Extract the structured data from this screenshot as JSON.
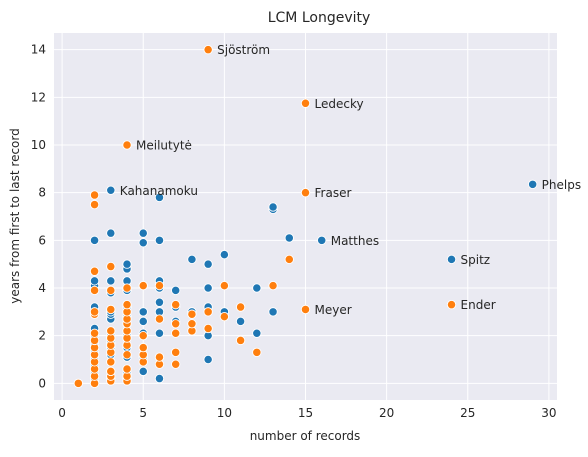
{
  "chart_data": {
    "type": "scatter",
    "title": "LCM Longevity",
    "xlabel": "number of records",
    "ylabel": "years from first to last record",
    "xlim": [
      -0.5,
      30.5
    ],
    "ylim": [
      -0.7,
      14.7
    ],
    "xticks": [
      0,
      5,
      10,
      15,
      20,
      25,
      30
    ],
    "yticks": [
      0,
      2,
      4,
      6,
      8,
      10,
      12,
      14
    ],
    "grid": true,
    "legend": "none",
    "colors": {
      "blue": "#1f77b4",
      "orange": "#ff7f0e",
      "background": "#eaeaf2",
      "grid": "#ffffff"
    },
    "series": [
      {
        "color": "blue",
        "points": [
          [
            2,
            0.0
          ],
          [
            2,
            0.2
          ],
          [
            2,
            0.4
          ],
          [
            2,
            0.6
          ],
          [
            2,
            0.8
          ],
          [
            2,
            1.0
          ],
          [
            2,
            1.2
          ],
          [
            2,
            1.4
          ],
          [
            2,
            1.6
          ],
          [
            2,
            1.9
          ],
          [
            2,
            2.1
          ],
          [
            2,
            2.3
          ],
          [
            2,
            3.2
          ],
          [
            2,
            4.1
          ],
          [
            2,
            4.3
          ],
          [
            2,
            6.0
          ],
          [
            3,
            0.2
          ],
          [
            3,
            0.5
          ],
          [
            3,
            0.9
          ],
          [
            3,
            1.2
          ],
          [
            3,
            1.5
          ],
          [
            3,
            1.7
          ],
          [
            3,
            2.0
          ],
          [
            3,
            2.7
          ],
          [
            3,
            2.9
          ],
          [
            3,
            3.0
          ],
          [
            3,
            3.8
          ],
          [
            3,
            4.3
          ],
          [
            3,
            6.3
          ],
          [
            3,
            8.1
          ],
          [
            4,
            0.2
          ],
          [
            4,
            0.4
          ],
          [
            4,
            1.1
          ],
          [
            4,
            1.5
          ],
          [
            4,
            2.0
          ],
          [
            4,
            2.5
          ],
          [
            4,
            2.8
          ],
          [
            4,
            3.2
          ],
          [
            4,
            3.9
          ],
          [
            4,
            4.3
          ],
          [
            4,
            4.8
          ],
          [
            4,
            5.0
          ],
          [
            5,
            0.5
          ],
          [
            5,
            1.1
          ],
          [
            5,
            2.1
          ],
          [
            5,
            2.6
          ],
          [
            5,
            3.0
          ],
          [
            5,
            4.1
          ],
          [
            5,
            5.9
          ],
          [
            5,
            6.3
          ],
          [
            6,
            0.2
          ],
          [
            6,
            1.1
          ],
          [
            6,
            2.1
          ],
          [
            6,
            3.0
          ],
          [
            6,
            3.4
          ],
          [
            6,
            4.0
          ],
          [
            6,
            4.3
          ],
          [
            6,
            6.0
          ],
          [
            6,
            7.8
          ],
          [
            7,
            2.6
          ],
          [
            7,
            3.2
          ],
          [
            7,
            3.9
          ],
          [
            8,
            3.0
          ],
          [
            8,
            5.2
          ],
          [
            9,
            1.0
          ],
          [
            9,
            2.0
          ],
          [
            9,
            3.2
          ],
          [
            9,
            4.0
          ],
          [
            9,
            5.0
          ],
          [
            10,
            3.0
          ],
          [
            10,
            5.4
          ],
          [
            11,
            2.6
          ],
          [
            12,
            2.1
          ],
          [
            12,
            4.0
          ],
          [
            13,
            3.0
          ],
          [
            13,
            7.3
          ],
          [
            13,
            7.4
          ],
          [
            14,
            6.1
          ],
          [
            16,
            6.0
          ],
          [
            24,
            5.2
          ],
          [
            29,
            8.35
          ]
        ]
      },
      {
        "color": "orange",
        "points": [
          [
            1,
            0.0
          ],
          [
            2,
            0.0
          ],
          [
            2,
            0.3
          ],
          [
            2,
            0.6
          ],
          [
            2,
            0.9
          ],
          [
            2,
            1.2
          ],
          [
            2,
            1.5
          ],
          [
            2,
            1.8
          ],
          [
            2,
            2.1
          ],
          [
            2,
            2.9
          ],
          [
            2,
            3.0
          ],
          [
            2,
            3.9
          ],
          [
            2,
            4.7
          ],
          [
            2,
            7.5
          ],
          [
            2,
            7.9
          ],
          [
            3,
            0.1
          ],
          [
            3,
            0.3
          ],
          [
            3,
            0.5
          ],
          [
            3,
            0.9
          ],
          [
            3,
            1.3
          ],
          [
            3,
            1.6
          ],
          [
            3,
            1.9
          ],
          [
            3,
            2.2
          ],
          [
            3,
            3.1
          ],
          [
            3,
            3.9
          ],
          [
            3,
            4.9
          ],
          [
            4,
            0.1
          ],
          [
            4,
            0.3
          ],
          [
            4,
            0.6
          ],
          [
            4,
            1.2
          ],
          [
            4,
            1.6
          ],
          [
            4,
            1.9
          ],
          [
            4,
            2.2
          ],
          [
            4,
            2.5
          ],
          [
            4,
            2.7
          ],
          [
            4,
            3.0
          ],
          [
            4,
            3.3
          ],
          [
            4,
            4.0
          ],
          [
            4,
            10.0
          ],
          [
            5,
            0.9
          ],
          [
            5,
            1.2
          ],
          [
            5,
            1.5
          ],
          [
            5,
            2.0
          ],
          [
            5,
            4.1
          ],
          [
            6,
            0.8
          ],
          [
            6,
            1.1
          ],
          [
            6,
            2.7
          ],
          [
            6,
            4.1
          ],
          [
            7,
            0.8
          ],
          [
            7,
            1.3
          ],
          [
            7,
            2.1
          ],
          [
            7,
            2.5
          ],
          [
            7,
            3.3
          ],
          [
            8,
            2.2
          ],
          [
            8,
            2.5
          ],
          [
            8,
            2.9
          ],
          [
            9,
            2.3
          ],
          [
            9,
            3.0
          ],
          [
            9,
            14.0
          ],
          [
            10,
            2.8
          ],
          [
            10,
            4.1
          ],
          [
            11,
            1.8
          ],
          [
            11,
            3.2
          ],
          [
            12,
            1.3
          ],
          [
            13,
            4.1
          ],
          [
            14,
            5.2
          ],
          [
            15,
            3.1
          ],
          [
            15,
            8.0
          ],
          [
            15,
            11.75
          ],
          [
            24,
            3.3
          ]
        ]
      }
    ],
    "annotations": [
      {
        "text": "Sjöström",
        "x": 9,
        "y": 14.0
      },
      {
        "text": "Ledecky",
        "x": 15,
        "y": 11.75
      },
      {
        "text": "Meilutytė",
        "x": 4,
        "y": 10.0
      },
      {
        "text": "Phelps",
        "x": 29,
        "y": 8.35
      },
      {
        "text": "Kahanamoku",
        "x": 3,
        "y": 8.1
      },
      {
        "text": "Fraser",
        "x": 15,
        "y": 8.0
      },
      {
        "text": "Matthes",
        "x": 16,
        "y": 6.0
      },
      {
        "text": "Spitz",
        "x": 24,
        "y": 5.2
      },
      {
        "text": "Meyer",
        "x": 15,
        "y": 3.1
      },
      {
        "text": "Ender",
        "x": 24,
        "y": 3.3
      }
    ]
  }
}
